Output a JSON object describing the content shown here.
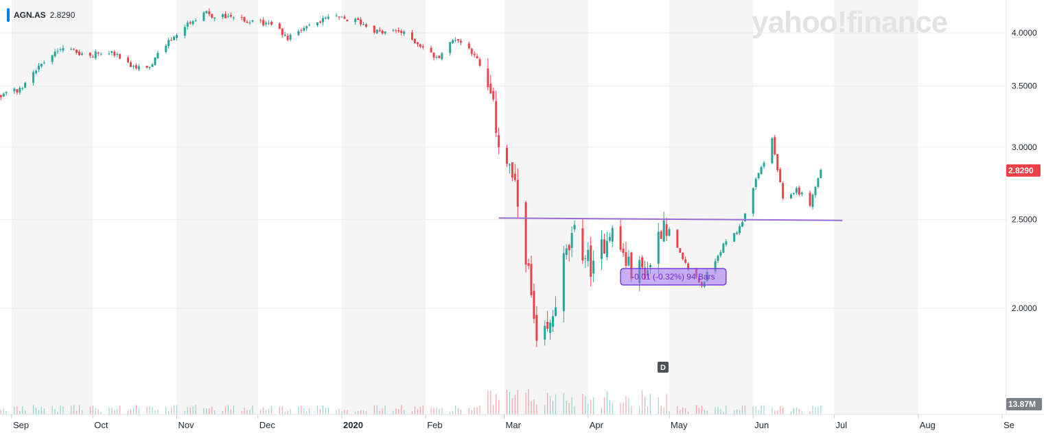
{
  "legend": {
    "symbol": "AGN.AS",
    "last": "2.8290"
  },
  "watermark": "yahoo!finance",
  "price_tag": "2.8290",
  "volume_tag": "13.87M",
  "measure_label": "-0.01 (-0.32%) 94 Bars",
  "d_marker": "D",
  "colors": {
    "up": "#26a69a",
    "down": "#ef3f47",
    "trendline": "#9a6bd6",
    "tag_red": "#ef3f47",
    "tag_gray": "#7a8086"
  },
  "chart_data": {
    "type": "candlestick",
    "y_ticks": [
      "4.0000",
      "3.5000",
      "3.0000",
      "2.5000",
      "2.0000"
    ],
    "y_tick_values": [
      4.0,
      3.5,
      3.0,
      2.5,
      2.0
    ],
    "x_labels": [
      "Sep",
      "Oct",
      "Nov",
      "Dec",
      "2020",
      "Feb",
      "Mar",
      "Apr",
      "May",
      "Jun",
      "Jul",
      "Aug",
      "Se"
    ],
    "x_label_dates": [
      "2019-09-01",
      "2019-10-01",
      "2019-11-01",
      "2019-12-01",
      "2020-01-01",
      "2020-02-01",
      "2020-03-01",
      "2020-04-01",
      "2020-05-01",
      "2020-06-01",
      "2020-07-01",
      "2020-08-01",
      "2020-09-01"
    ],
    "ylim": [
      1.55,
      4.35
    ],
    "close_points": [
      [
        "2019-08-28",
        3.42
      ],
      [
        "2019-09-05",
        3.48
      ],
      [
        "2019-09-12",
        3.7
      ],
      [
        "2019-09-20",
        3.85
      ],
      [
        "2019-09-30",
        3.78
      ],
      [
        "2019-10-08",
        3.82
      ],
      [
        "2019-10-15",
        3.68
      ],
      [
        "2019-10-22",
        3.66
      ],
      [
        "2019-10-28",
        3.9
      ],
      [
        "2019-11-05",
        4.1
      ],
      [
        "2019-11-12",
        4.2
      ],
      [
        "2019-11-20",
        4.15
      ],
      [
        "2019-11-27",
        4.12
      ],
      [
        "2019-12-05",
        4.1
      ],
      [
        "2019-12-12",
        3.95
      ],
      [
        "2019-12-20",
        4.1
      ],
      [
        "2019-12-30",
        4.15
      ],
      [
        "2020-01-07",
        4.12
      ],
      [
        "2020-01-15",
        4.0
      ],
      [
        "2020-01-22",
        4.02
      ],
      [
        "2020-01-29",
        3.9
      ],
      [
        "2020-02-05",
        3.75
      ],
      [
        "2020-02-12",
        3.95
      ],
      [
        "2020-02-19",
        3.8
      ],
      [
        "2020-02-25",
        3.4
      ],
      [
        "2020-02-28",
        3.05
      ],
      [
        "2020-03-04",
        2.78
      ],
      [
        "2020-03-09",
        2.3
      ],
      [
        "2020-03-13",
        1.8
      ],
      [
        "2020-03-18",
        1.9
      ],
      [
        "2020-03-23",
        2.25
      ],
      [
        "2020-03-27",
        2.4
      ],
      [
        "2020-04-03",
        2.2
      ],
      [
        "2020-04-09",
        2.45
      ],
      [
        "2020-04-16",
        2.22
      ],
      [
        "2020-04-23",
        2.2
      ],
      [
        "2020-04-29",
        2.5
      ],
      [
        "2020-05-06",
        2.25
      ],
      [
        "2020-05-13",
        2.12
      ],
      [
        "2020-05-20",
        2.32
      ],
      [
        "2020-05-27",
        2.45
      ],
      [
        "2020-06-02",
        2.75
      ],
      [
        "2020-06-08",
        3.05
      ],
      [
        "2020-06-12",
        2.62
      ],
      [
        "2020-06-17",
        2.7
      ],
      [
        "2020-06-22",
        2.6
      ],
      [
        "2020-06-26",
        2.83
      ]
    ],
    "trendline": [
      [
        "2020-02-28",
        2.51
      ],
      [
        "2020-07-04",
        2.495
      ]
    ],
    "measure_range": {
      "start": "2020-04-13",
      "end": "2020-05-22"
    }
  }
}
